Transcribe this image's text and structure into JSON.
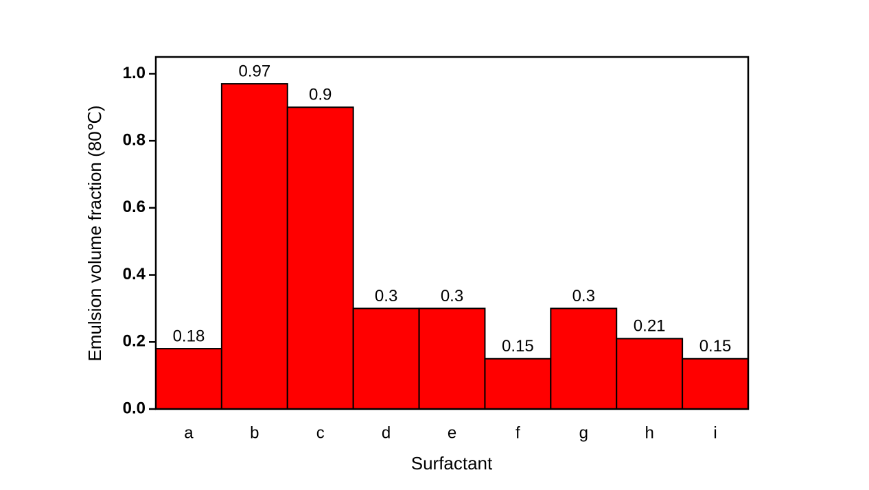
{
  "chart_data": {
    "type": "bar",
    "x_label": "Surfactant",
    "y_label": "Emulsion volume fraction (80℃)",
    "categories": [
      "a",
      "b",
      "c",
      "d",
      "e",
      "f",
      "g",
      "h",
      "i"
    ],
    "values": [
      0.18,
      0.97,
      0.9,
      0.3,
      0.3,
      0.15,
      0.3,
      0.21,
      0.15
    ],
    "color": "#ff0000",
    "ylim": [
      0,
      1.05
    ],
    "yticks": [
      {
        "value": 0,
        "label": "0.0"
      },
      0.2,
      0.4,
      0.6,
      0.8,
      {
        "value": 1,
        "label": "1.0"
      }
    ]
  }
}
